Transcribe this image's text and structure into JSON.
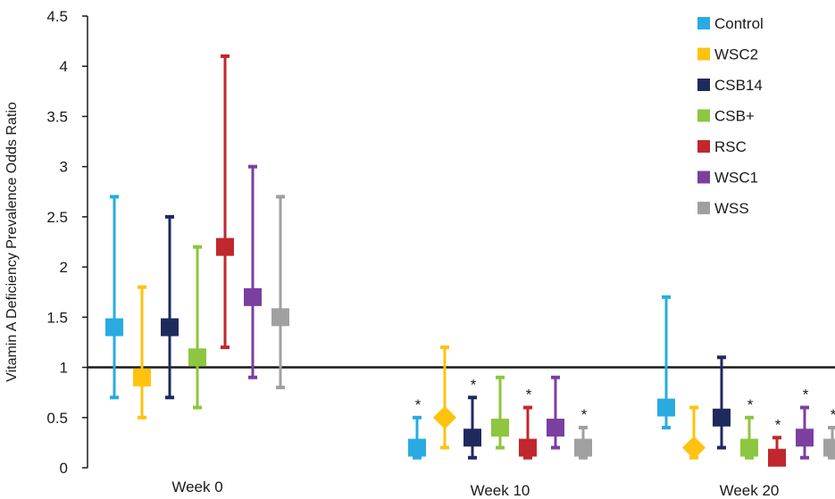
{
  "chart_data": {
    "type": "scatter",
    "title": "",
    "xlabel": "",
    "ylabel": "Vitamin A Deficiency Prevalence  Odds Ratio",
    "ylim": [
      0,
      4.5
    ],
    "yticks": [
      "0",
      "0.5",
      "1",
      "1.5",
      "2",
      "2.5",
      "3",
      "3.5",
      "4",
      "4.5"
    ],
    "reference_line": 1,
    "categories": [
      "Week 0",
      "Week 10",
      "Week 20"
    ],
    "legend_position": "top-right",
    "significance_marker": "*",
    "series": [
      {
        "name": "Control",
        "color": "#29ABE2",
        "marker": "square",
        "values": [
          1.4,
          0.2,
          0.6
        ],
        "lower": [
          0.7,
          0.1,
          0.4
        ],
        "upper": [
          2.7,
          0.5,
          1.7
        ],
        "marker_by_week": [
          "square",
          "square",
          "square"
        ],
        "significant": [
          false,
          true,
          false
        ]
      },
      {
        "name": "WSC2",
        "color": "#FFC20E",
        "marker": "square",
        "values": [
          0.9,
          0.5,
          0.2
        ],
        "lower": [
          0.5,
          0.2,
          0.1
        ],
        "upper": [
          1.8,
          1.2,
          0.6
        ],
        "marker_by_week": [
          "square",
          "diamond",
          "diamond"
        ],
        "significant": [
          false,
          false,
          false
        ]
      },
      {
        "name": "CSB14",
        "color": "#1F2A5C",
        "marker": "square",
        "values": [
          1.4,
          0.3,
          0.5
        ],
        "lower": [
          0.7,
          0.1,
          0.2
        ],
        "upper": [
          2.5,
          0.7,
          1.1
        ],
        "marker_by_week": [
          "square",
          "square",
          "square"
        ],
        "significant": [
          false,
          true,
          false
        ]
      },
      {
        "name": "CSB+",
        "color": "#8DC63F",
        "marker": "square",
        "values": [
          1.1,
          0.4,
          0.2
        ],
        "lower": [
          0.6,
          0.2,
          0.1
        ],
        "upper": [
          2.2,
          0.9,
          0.5
        ],
        "marker_by_week": [
          "square",
          "square",
          "square"
        ],
        "significant": [
          false,
          false,
          true
        ]
      },
      {
        "name": "RSC",
        "color": "#C1272D",
        "marker": "square",
        "values": [
          2.2,
          0.2,
          0.1
        ],
        "lower": [
          1.2,
          0.1,
          0.05
        ],
        "upper": [
          4.1,
          0.6,
          0.3
        ],
        "marker_by_week": [
          "square",
          "square",
          "square"
        ],
        "significant": [
          false,
          true,
          true
        ]
      },
      {
        "name": "WSC1",
        "color": "#7B3FA0",
        "marker": "square",
        "values": [
          1.7,
          0.4,
          0.3
        ],
        "lower": [
          0.9,
          0.2,
          0.1
        ],
        "upper": [
          3.0,
          0.9,
          0.6
        ],
        "marker_by_week": [
          "square",
          "square",
          "square"
        ],
        "significant": [
          false,
          false,
          true
        ]
      },
      {
        "name": "WSS",
        "color": "#A0A0A0",
        "marker": "square",
        "values": [
          1.5,
          0.2,
          0.2
        ],
        "lower": [
          0.8,
          0.1,
          0.1
        ],
        "upper": [
          2.7,
          0.4,
          0.4
        ],
        "marker_by_week": [
          "square",
          "square",
          "square"
        ],
        "significant": [
          false,
          true,
          true
        ]
      }
    ]
  }
}
